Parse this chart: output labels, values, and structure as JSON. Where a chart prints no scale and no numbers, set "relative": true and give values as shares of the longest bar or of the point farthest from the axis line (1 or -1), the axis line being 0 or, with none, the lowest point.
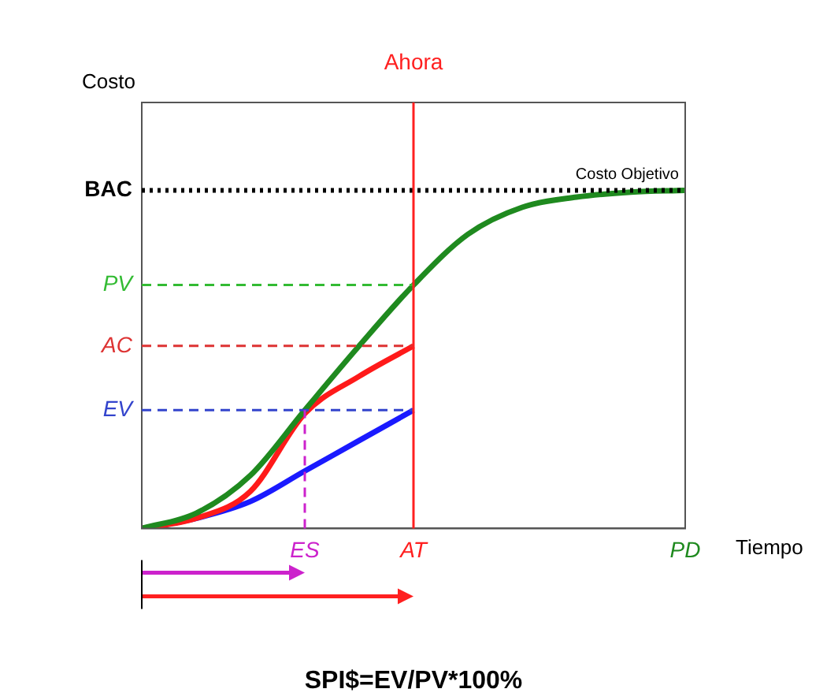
{
  "chart_data": {
    "type": "line",
    "relative": true,
    "xlabel": "Tiempo",
    "ylabel": "Costo",
    "categories": [
      null,
      null,
      null,
      "ES",
      null,
      "AT",
      null,
      null,
      null,
      null,
      "PD"
    ],
    "series": [
      {
        "color": "#1f8a1f",
        "values": [
          0,
          0.045,
          0.157,
          0.35,
          0.54,
          0.72,
          0.87,
          0.95,
          0.98,
          0.995,
          1
        ]
      },
      {
        "color": "#ff1a1a",
        "values": [
          0,
          0.03,
          0.11,
          0.34,
          0.45,
          0.54,
          null,
          null,
          null,
          null,
          null
        ]
      },
      {
        "color": "#1a1aff",
        "values": [
          0,
          0.03,
          0.08,
          0.17,
          0.26,
          0.35,
          null,
          null,
          null,
          null,
          null
        ]
      }
    ],
    "ref_lines": [
      {
        "axis": "y",
        "value": 1,
        "label": "BAC",
        "color": "#000000",
        "line_style": "dotted"
      },
      {
        "axis": "y",
        "value": 0.72,
        "label": "PV",
        "color": "#33bb33",
        "line_style": "dashed"
      },
      {
        "axis": "y",
        "value": 0.54,
        "label": "AC",
        "color": "#dd3333",
        "line_style": "dashed"
      },
      {
        "axis": "y",
        "value": 0.35,
        "label": "EV",
        "color": "#3344cc",
        "line_style": "dashed"
      },
      {
        "axis": "x",
        "value": "AT",
        "label": "Ahora",
        "color": "#ff2020",
        "line_style": "solid"
      },
      {
        "axis": "x",
        "value": "ES",
        "color": "#cc22cc",
        "line_style": "dashed"
      }
    ],
    "annotations": [
      {
        "text": "Costo Objetivo",
        "y": 1
      },
      "SPI$=EV/PV*100%"
    ],
    "grid": false,
    "legend": false,
    "marker": "none"
  }
}
